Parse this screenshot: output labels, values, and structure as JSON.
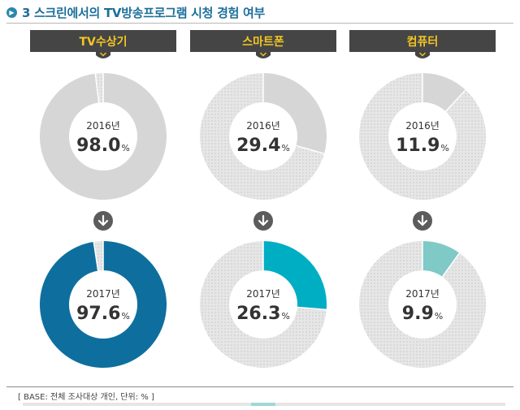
{
  "header": {
    "icon": "chevron-right-circle-icon",
    "title": "3 스크린에서의 TV방송프로그램 시청 경험 여부"
  },
  "colors": {
    "header_bar": "#454545",
    "header_text": "#f3c623",
    "remainder": "#e6e6e6",
    "remainder_dots": "#c4c4c4",
    "gray_2016": "#d6d6d6",
    "arrow_circle": "#5c5c5c"
  },
  "chart_data": [
    {
      "type": "pie",
      "device": "TV수상기",
      "series": [
        {
          "year_label": "2016년",
          "value": 98.0,
          "value_text": "98.0",
          "unit": "%",
          "color": "#d6d6d6"
        },
        {
          "year_label": "2017년",
          "value": 97.6,
          "value_text": "97.6",
          "unit": "%",
          "color": "#0e6f9e"
        }
      ]
    },
    {
      "type": "pie",
      "device": "스마트폰",
      "series": [
        {
          "year_label": "2016년",
          "value": 29.4,
          "value_text": "29.4",
          "unit": "%",
          "color": "#d6d6d6"
        },
        {
          "year_label": "2017년",
          "value": 26.3,
          "value_text": "26.3",
          "unit": "%",
          "color": "#00aec3"
        }
      ]
    },
    {
      "type": "pie",
      "device": "컴퓨터",
      "series": [
        {
          "year_label": "2016년",
          "value": 11.9,
          "value_text": "11.9",
          "unit": "%",
          "color": "#d6d6d6"
        },
        {
          "year_label": "2017년",
          "value": 9.9,
          "value_text": "9.9",
          "unit": "%",
          "color": "#7fc9c7"
        }
      ]
    }
  ],
  "footer": {
    "base_note": "[ BASE: 전체 조사대상 개인, 단위: % ]"
  }
}
